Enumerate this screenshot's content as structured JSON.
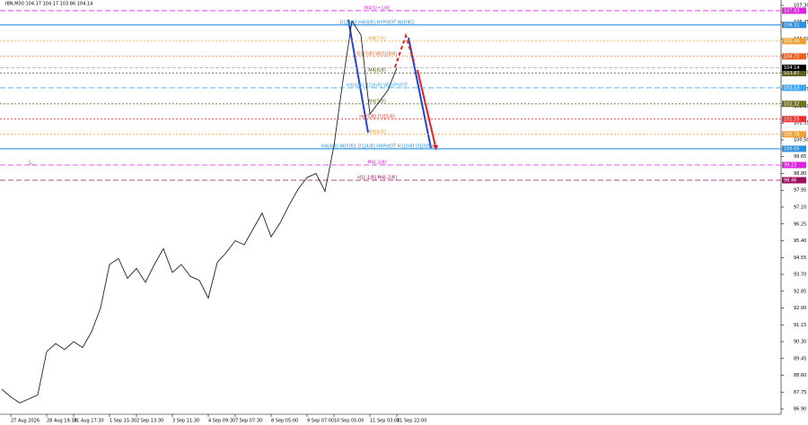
{
  "chart_data": {
    "type": "line",
    "title": "IBN,M30 104.17 104.17 103.86 104.14",
    "categories": [
      null,
      "27 Aug 2026",
      null,
      null,
      null,
      "28 Aug 19:30",
      null,
      null,
      "31 Aug 17:30",
      null,
      null,
      null,
      "1 Sep 15:30",
      null,
      null,
      "2 Sep 13:30",
      null,
      null,
      null,
      "3 Sep 11:30",
      null,
      null,
      null,
      "4 Sep 09:30",
      null,
      null,
      "7 Sep 07:30",
      null,
      null,
      null,
      "8 Sep 05:00",
      null,
      null,
      null,
      "9 Sep 07:00",
      null,
      null,
      "10 Sep 05:00",
      null,
      null,
      null,
      "11 Sep 03:00",
      null,
      null,
      "11 Sep 22:00"
    ],
    "series": [
      {
        "name": "IBN,M30",
        "color": "#222222",
        "values": [
          87.9,
          87.5,
          87.2,
          87.4,
          87.6,
          89.8,
          90.2,
          89.9,
          90.3,
          90.0,
          90.8,
          92.0,
          94.2,
          94.5,
          93.5,
          94.0,
          93.3,
          94.2,
          95.0,
          93.8,
          94.2,
          93.6,
          93.4,
          92.5,
          94.3,
          94.8,
          95.4,
          95.2,
          96.0,
          96.8,
          95.6,
          96.3,
          97.2,
          98.0,
          98.6,
          98.8,
          97.9,
          100.2,
          103.5,
          106.5,
          105.8,
          101.8,
          102.4,
          103.0,
          104.14
        ]
      }
    ],
    "ylim": [
      86.63,
      107.57
    ],
    "yticks": [
      {
        "value": 86.9,
        "label": "86.90"
      },
      87.75,
      {
        "value": 88.6,
        "label": "88.60"
      },
      89.45,
      {
        "value": 90.3,
        "label": "90.30"
      },
      91.15,
      {
        "value": 92,
        "label": "92.00"
      },
      92.85,
      {
        "value": 93.7,
        "label": "93.70"
      },
      94.55,
      {
        "value": 95.4,
        "label": "95.40"
      },
      96.25,
      {
        "value": 97.1,
        "label": "97.10"
      },
      97.95,
      {
        "value": 98.8,
        "label": "98.80"
      },
      99.65,
      {
        "value": 100.5,
        "label": "100.50"
      },
      101.35,
      {
        "value": 102.2,
        "label": "102.20"
      },
      103.05,
      {
        "value": 103.9,
        "label": "103.90"
      },
      104.75,
      {
        "value": 105.6,
        "label": "105.60"
      },
      106.45,
      {
        "value": 107.3,
        "label": "107.30"
      }
    ],
    "levels": [
      {
        "label": "M4[0/+1/8]",
        "value": 107.03,
        "color": "#e020e0",
        "style": "dashed"
      },
      {
        "label": "D1[8/8] H4[8/8] HYPIVOT W[0]R2",
        "value": 106.31,
        "color": "#2a90e0",
        "style": "solid"
      },
      {
        "label": "M4[7/8]",
        "value": 105.49,
        "color": "#f0a030",
        "style": "dotted"
      },
      {
        "label": "D1[7/8] W[0](8/8)",
        "value": 104.72,
        "color": "#f06020",
        "style": "dotted"
      },
      {
        "label": "M4[6/8]",
        "value": 103.87,
        "color": "#606020",
        "style": "dotted"
      },
      {
        "label": "H4[6/8] D1[6/8] W[0]PIVOT",
        "value": 103.13,
        "color": "#40a8f0",
        "style": "dashed"
      },
      {
        "label": "M4[5/8]",
        "value": 102.32,
        "color": "#707020",
        "style": "dotted"
      },
      {
        "label": "H4[5/8] D1[5/8]",
        "value": 101.55,
        "color": "#f03030",
        "style": "dotted"
      },
      {
        "label": "M4[4/8]",
        "value": 100.78,
        "color": "#f0a030",
        "style": "dotted"
      },
      {
        "label": "H4[4/8] W[0]R1 D1[4/8] H4PIVOT H1[0/8] D1[0/8]",
        "value": 100.05,
        "color": "#2a90e0",
        "style": "solid"
      },
      {
        "label": "M4[-1/8]",
        "value": 99.23,
        "color": "#e020e0",
        "style": "dashed"
      },
      {
        "label": "H1[-1/8] M4[-2/8]",
        "value": 98.46,
        "color": "#a01060",
        "style": "dashed"
      }
    ]
  }
}
